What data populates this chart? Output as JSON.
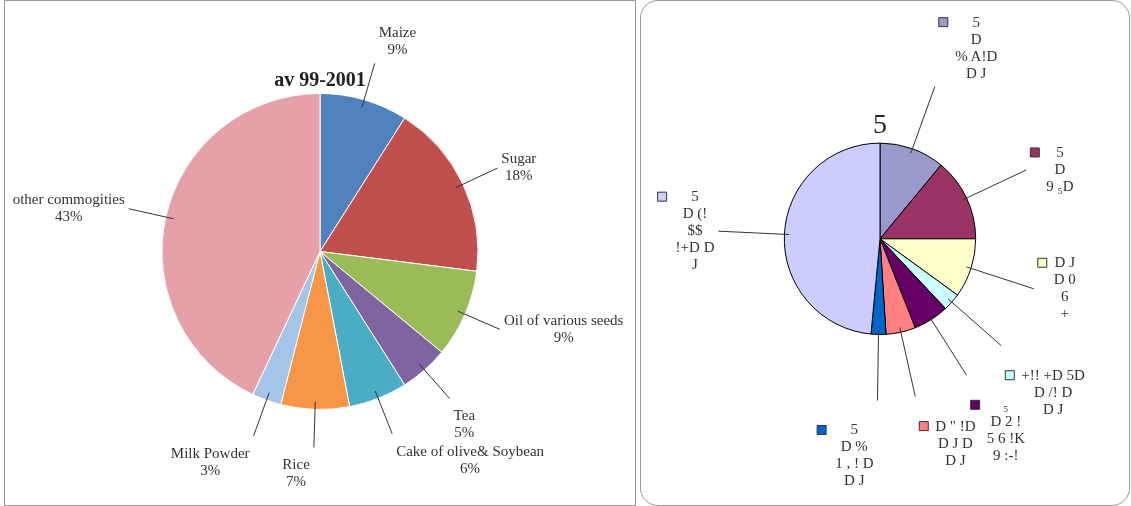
{
  "chart_data": [
    {
      "type": "pie",
      "title": "av 99-2001",
      "categories": [
        "Maize",
        "Sugar",
        "Oil of various seeds",
        "Tea",
        "Cake of olive& Soybean",
        "Rice",
        "Milk Powder",
        "other commogities"
      ],
      "values": [
        9,
        18,
        9,
        5,
        6,
        7,
        3,
        43
      ],
      "value_labels": [
        "9%",
        "18%",
        "9%",
        "5%",
        "6%",
        "7%",
        "3%",
        "43%"
      ],
      "colors": [
        "#4f81bd",
        "#c0504d",
        "#9bbb59",
        "#8064a2",
        "#4bacc6",
        "#f79646",
        "#a5c5e8",
        "#e6a0a8"
      ]
    },
    {
      "type": "pie",
      "title": "5",
      "categories": [
        "5\nD\n% A!D\nD J",
        "5\nD\n9 ₅D",
        "D J\nD 0\n6\n+",
        "+!! +D 5D\nD /! D\nD J",
        "₅\nD 2 !\n5 6 !K\n9 :-!",
        "D \" !D\nD J D\nD J",
        "5\nD %\n1 , ! D\nD J",
        "5\nD (!\n$$\n!+D D\nJ"
      ],
      "values": [
        11,
        14,
        10,
        3,
        6,
        5,
        2.5,
        48.5
      ],
      "legend": "right",
      "colors": [
        "#9999cc",
        "#993366",
        "#ffffcc",
        "#ccffff",
        "#660066",
        "#ff8080",
        "#0066cc",
        "#ccccff"
      ]
    }
  ]
}
